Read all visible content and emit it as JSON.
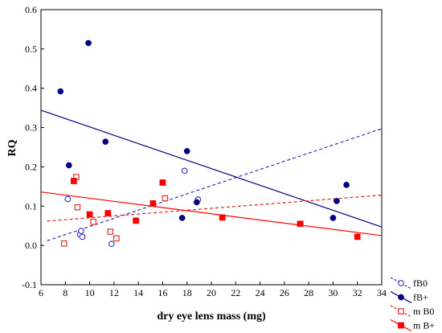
{
  "chart_data": {
    "type": "scatter",
    "title": "",
    "xlabel": "dry eye lens mass (mg)",
    "ylabel": "RQ",
    "xlim": [
      6,
      34
    ],
    "ylim": [
      -0.1,
      0.6
    ],
    "xticks": [
      6,
      8,
      10,
      12,
      14,
      16,
      18,
      20,
      22,
      24,
      26,
      28,
      30,
      32,
      34
    ],
    "yticks": [
      -0.1,
      0.0,
      0.1,
      0.2,
      0.3,
      0.4,
      0.5,
      0.6
    ],
    "xtick_labels": [
      "6",
      "8",
      "10",
      "12",
      "14",
      "16",
      "18",
      "20",
      "22",
      "24",
      "26",
      "28",
      "30",
      "32",
      "34"
    ],
    "ytick_labels": [
      "-0.1",
      "0.0",
      "0.1",
      "0.2",
      "0.3",
      "0.4",
      "0.5",
      "0.6"
    ],
    "grid": false,
    "legend_position": "outside-bottom-right",
    "series": [
      {
        "name": "fB0",
        "color": "#3030c0",
        "marker": "open-circle",
        "points": [
          [
            8.2,
            0.118
          ],
          [
            9.2,
            0.028
          ],
          [
            9.3,
            0.037
          ],
          [
            9.4,
            0.022
          ],
          [
            11.8,
            0.004
          ],
          [
            17.8,
            0.19
          ],
          [
            18.9,
            0.117
          ]
        ],
        "fit": {
          "x": [
            6.5,
            34
          ],
          "y": [
            0.012,
            0.297
          ],
          "style": "dashed"
        }
      },
      {
        "name": "fB+",
        "color": "#000080",
        "marker": "filled-circle",
        "points": [
          [
            7.6,
            0.392
          ],
          [
            8.3,
            0.204
          ],
          [
            9.9,
            0.515
          ],
          [
            11.3,
            0.264
          ],
          [
            17.6,
            0.07
          ],
          [
            18.0,
            0.24
          ],
          [
            18.8,
            0.11
          ],
          [
            30.0,
            0.07
          ],
          [
            30.3,
            0.113
          ],
          [
            31.1,
            0.154
          ]
        ],
        "fit": {
          "x": [
            6,
            34
          ],
          "y": [
            0.344,
            0.047
          ],
          "style": "solid"
        }
      },
      {
        "name": "m B0",
        "color": "#e02020",
        "marker": "open-square",
        "points": [
          [
            7.9,
            0.005
          ],
          [
            8.9,
            0.174
          ],
          [
            9.0,
            0.097
          ],
          [
            10.3,
            0.06
          ],
          [
            11.7,
            0.035
          ],
          [
            12.2,
            0.018
          ],
          [
            16.2,
            0.12
          ]
        ],
        "fit": {
          "x": [
            6.5,
            34
          ],
          "y": [
            0.062,
            0.128
          ],
          "style": "dashed"
        }
      },
      {
        "name": "m B+",
        "color": "#ff0000",
        "marker": "filled-square",
        "points": [
          [
            8.7,
            0.164
          ],
          [
            10.0,
            0.079
          ],
          [
            11.5,
            0.082
          ],
          [
            13.8,
            0.063
          ],
          [
            15.2,
            0.107
          ],
          [
            16.0,
            0.16
          ],
          [
            20.9,
            0.071
          ],
          [
            27.3,
            0.055
          ],
          [
            32.0,
            0.022
          ]
        ],
        "fit": {
          "x": [
            6,
            34
          ],
          "y": [
            0.136,
            0.025
          ],
          "style": "solid"
        }
      }
    ]
  }
}
